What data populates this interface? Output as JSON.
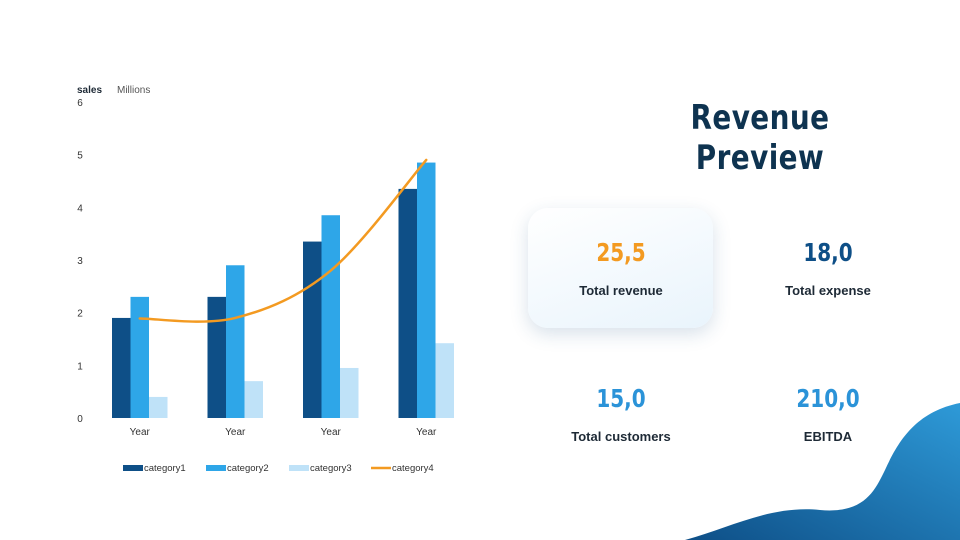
{
  "title": "Revenue Preview",
  "colors": {
    "orange": "#f39a21",
    "dark_blue": "#0e4f87",
    "mid_blue": "#2ea6e8",
    "light_blue": "#bfe2f8",
    "title": "#0e3350"
  },
  "stats": [
    {
      "value": "25,5",
      "label": "Total revenue",
      "color": "#f39a21",
      "highlighted": true
    },
    {
      "value": "18,0",
      "label": "Total expense",
      "color": "#0e4f87"
    },
    {
      "value": "15,0",
      "label": "Total customers",
      "color": "#2b93d8"
    },
    {
      "value": "210,0",
      "label": "EBITDA",
      "color": "#2b93d8"
    }
  ],
  "chart_data": {
    "type": "bar",
    "ylabel": "sales",
    "yunit": "Millions",
    "ylim": [
      0,
      6
    ],
    "yticks": [
      0,
      1,
      2,
      3,
      4,
      5,
      6
    ],
    "categories": [
      "Year",
      "Year",
      "Year",
      "Year"
    ],
    "series": [
      {
        "name": "category1",
        "type": "bar",
        "color": "#0e4f87",
        "values": [
          1.9,
          2.3,
          3.35,
          4.35
        ]
      },
      {
        "name": "category2",
        "type": "bar",
        "color": "#2ea6e8",
        "values": [
          2.3,
          2.9,
          3.85,
          4.85
        ]
      },
      {
        "name": "category3",
        "type": "bar",
        "color": "#bfe2f8",
        "values": [
          0.4,
          0.7,
          0.95,
          1.42
        ]
      },
      {
        "name": "category4",
        "type": "line",
        "color": "#f39a21",
        "values": [
          1.89,
          1.9,
          2.8,
          4.9
        ]
      }
    ],
    "legend_position": "bottom",
    "grid": false
  }
}
